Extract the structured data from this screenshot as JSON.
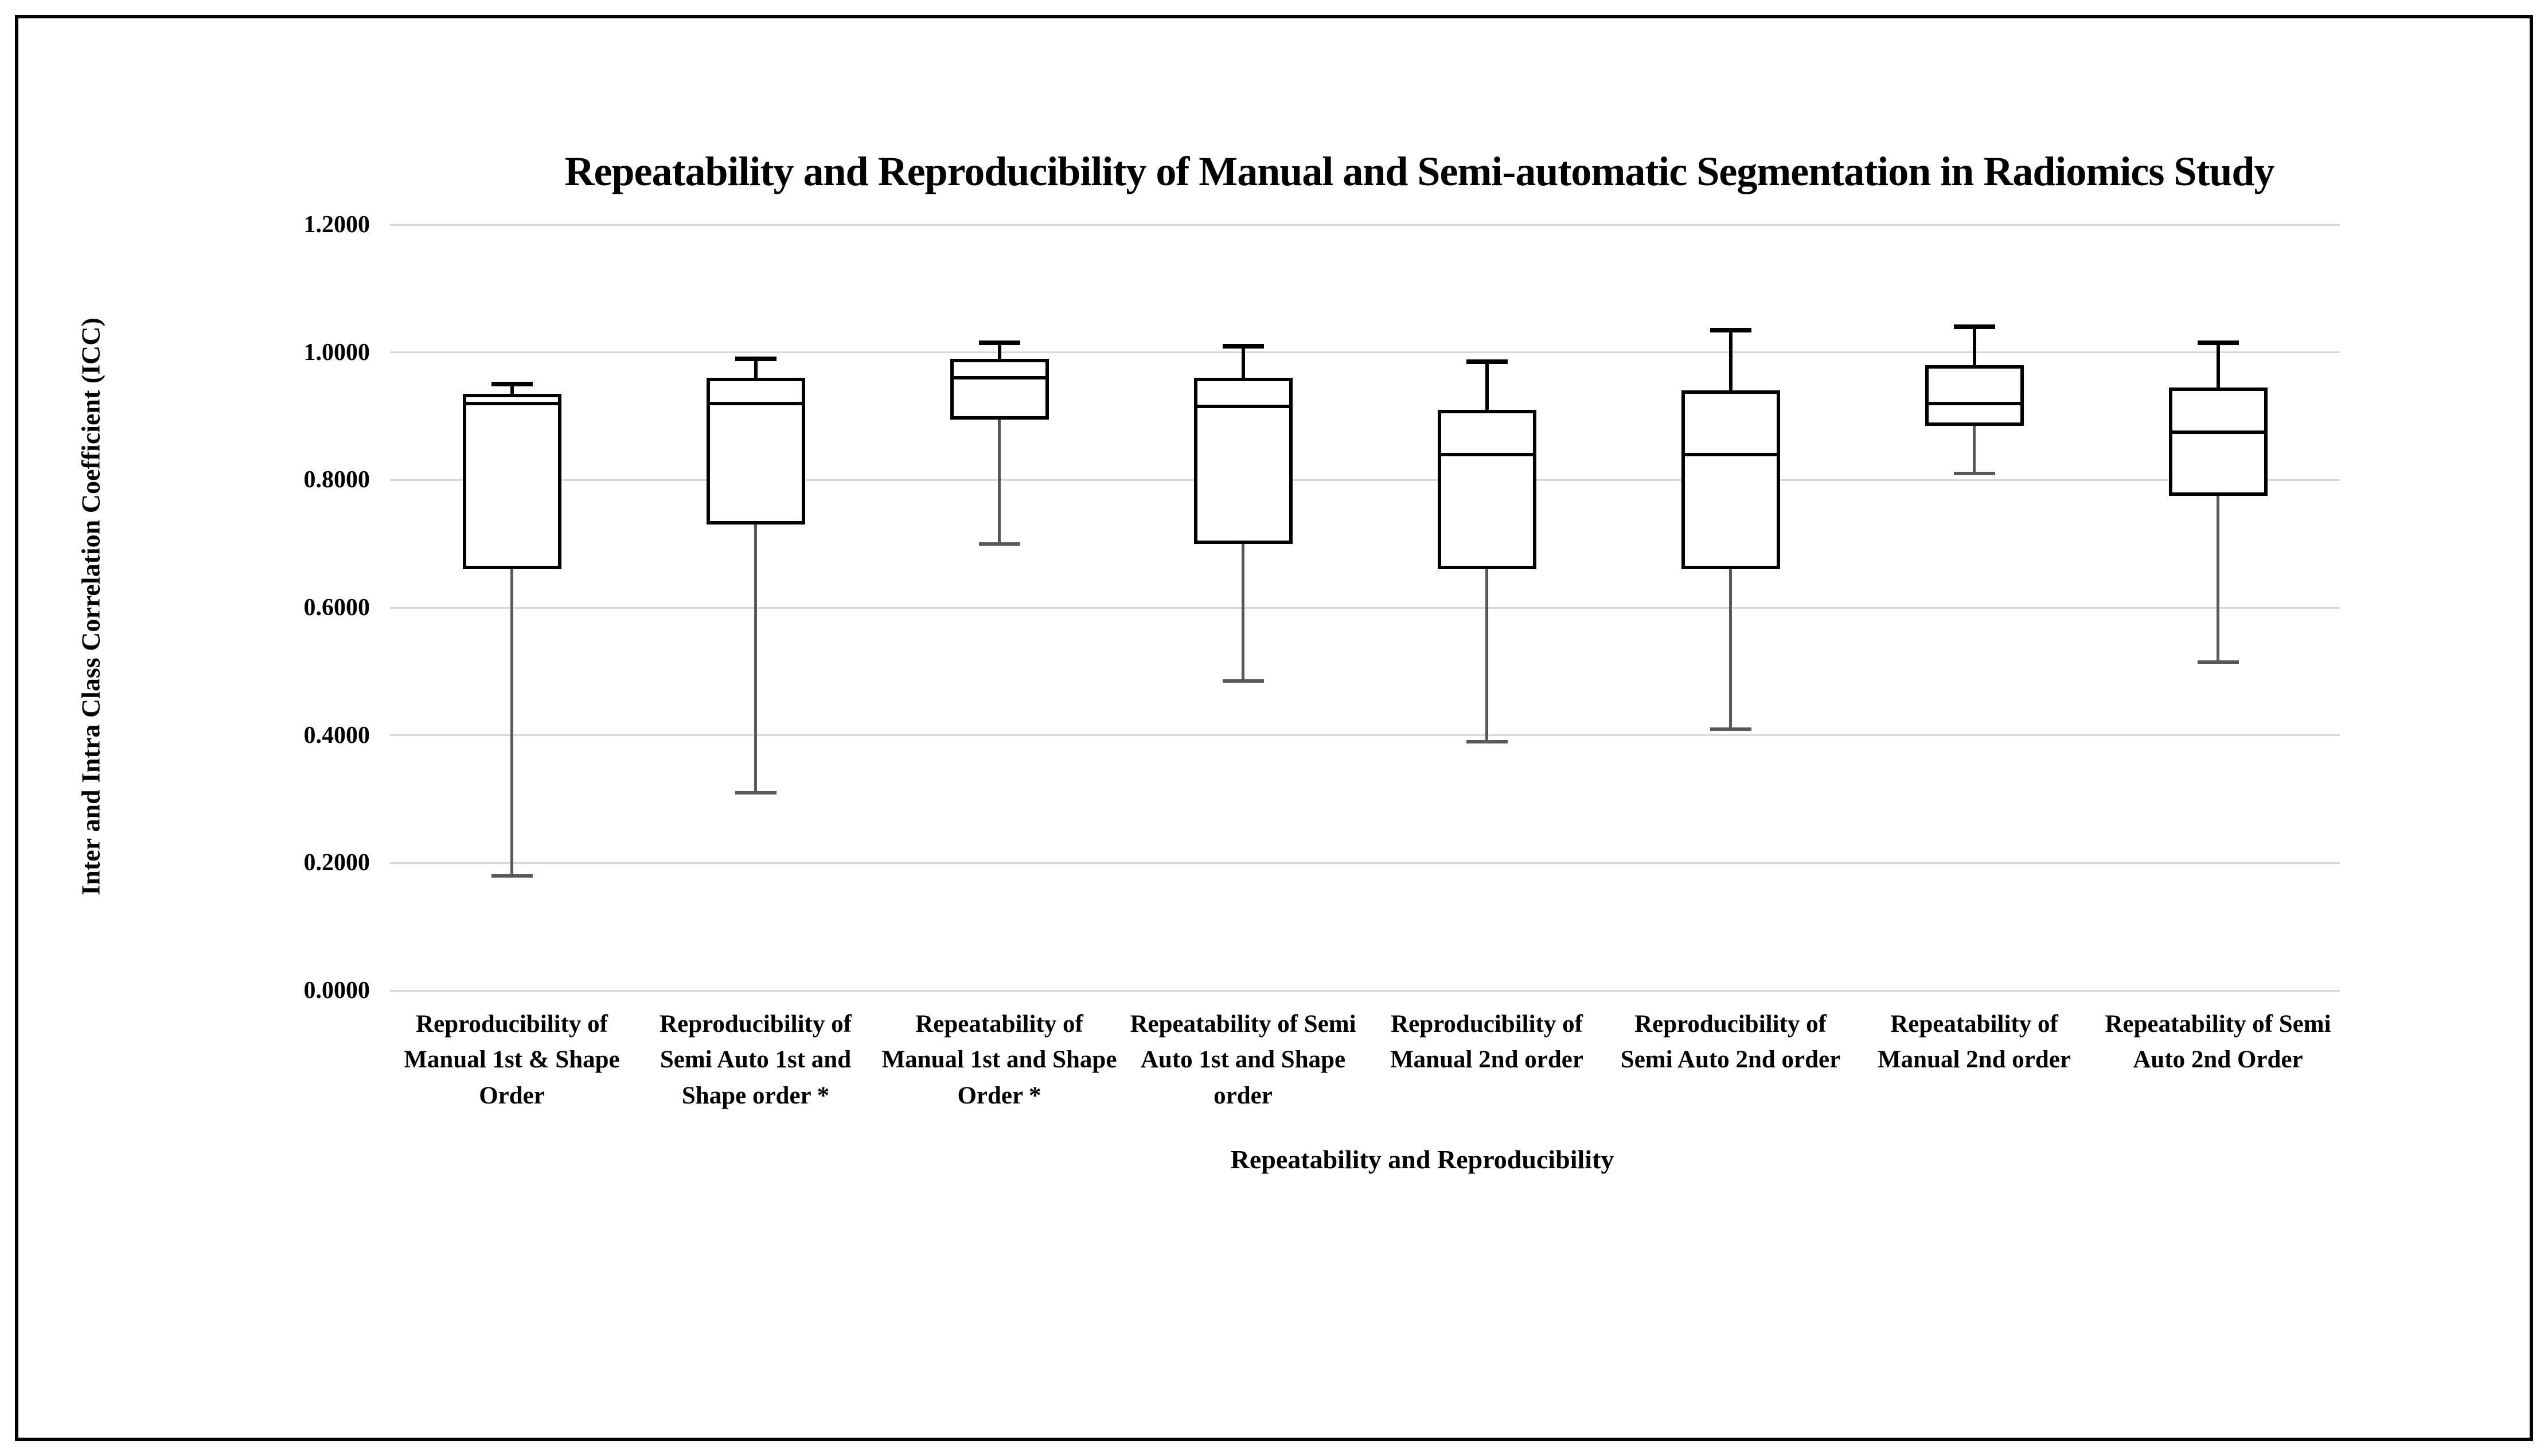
{
  "chart_data": {
    "type": "boxplot",
    "title": "Repeatability and Reproducibility of Manual and Semi-automatic Segmentation in Radiomics Study",
    "xlabel": "Repeatability and Reproducibility",
    "ylabel": "Inter and Intra Class Correlation Coefficient (ICC)",
    "y_axis": {
      "min": 0.0,
      "max": 1.2,
      "tick_step": 0.2,
      "tick_labels": [
        "0.0000",
        "0.2000",
        "0.4000",
        "0.6000",
        "0.8000",
        "1.0000",
        "1.2000"
      ],
      "grid": true
    },
    "categories": [
      "Reproducibility of Manual 1st & Shape Order",
      "Reproducibility of Semi Auto 1st and Shape order *",
      "Repeatability of Manual 1st and Shape Order *",
      "Repeatability of Semi Auto 1st and Shape order",
      "Reproducibility of Manual 2nd order",
      "Reproducibility of Semi Auto 2nd order",
      "Repeatability of Manual 2nd order",
      "Repeatability of Semi Auto 2nd Order"
    ],
    "boxes": [
      {
        "whisker_low": 0.18,
        "q1": 0.66,
        "median": 0.92,
        "q3": 0.935,
        "whisker_high": 0.95
      },
      {
        "whisker_low": 0.31,
        "q1": 0.73,
        "median": 0.92,
        "q3": 0.96,
        "whisker_high": 0.99
      },
      {
        "whisker_low": 0.7,
        "q1": 0.895,
        "median": 0.96,
        "q3": 0.99,
        "whisker_high": 1.015
      },
      {
        "whisker_low": 0.485,
        "q1": 0.7,
        "median": 0.915,
        "q3": 0.96,
        "whisker_high": 1.01
      },
      {
        "whisker_low": 0.39,
        "q1": 0.66,
        "median": 0.84,
        "q3": 0.91,
        "whisker_high": 0.985
      },
      {
        "whisker_low": 0.41,
        "q1": 0.66,
        "median": 0.84,
        "q3": 0.94,
        "whisker_high": 1.035
      },
      {
        "whisker_low": 0.81,
        "q1": 0.885,
        "median": 0.92,
        "q3": 0.98,
        "whisker_high": 1.04
      },
      {
        "whisker_low": 0.515,
        "q1": 0.775,
        "median": 0.875,
        "q3": 0.945,
        "whisker_high": 1.015
      }
    ],
    "legend": null
  },
  "colors": {
    "box_stroke": "#000000",
    "median_stroke": "#000000",
    "upper_whisker": "#000000",
    "lower_whisker": "#595959",
    "gridline": "#D9D9D9",
    "frame_border": "#000000",
    "background": "#FFFFFF",
    "text": "#000000"
  }
}
